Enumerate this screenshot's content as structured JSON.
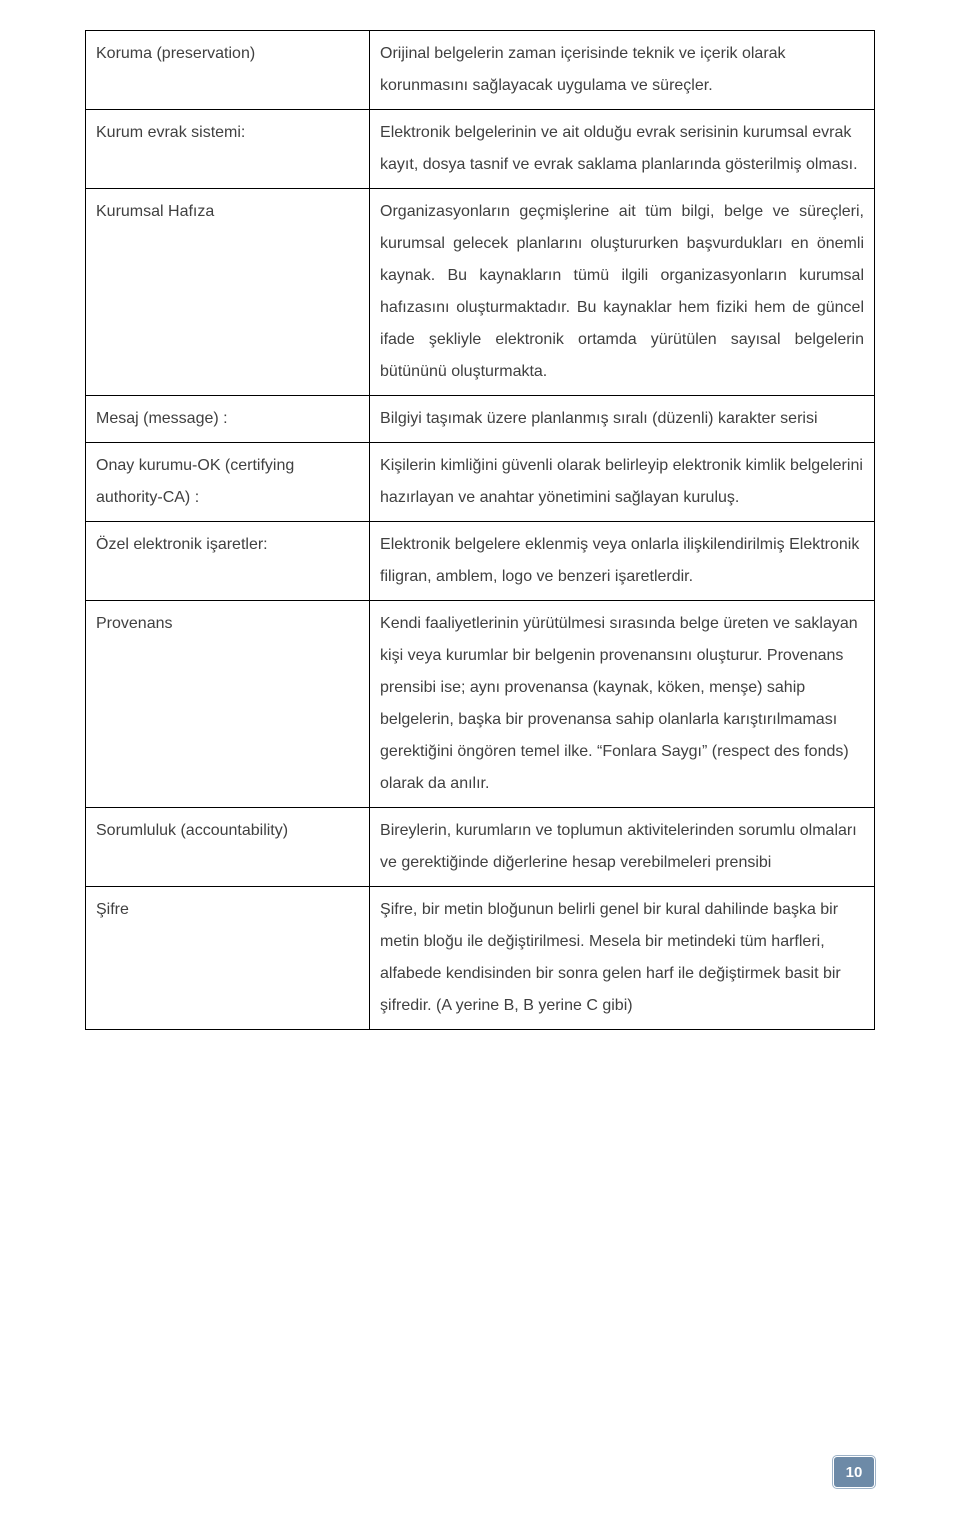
{
  "rows": [
    {
      "term": "Koruma (preservation)",
      "def": "Orijinal belgelerin zaman içerisinde teknik ve içerik olarak korunmasını sağlayacak uygulama ve süreçler.",
      "justify": false
    },
    {
      "term": "Kurum evrak sistemi:",
      "def": "Elektronik belgelerinin ve ait olduğu evrak serisinin kurumsal evrak kayıt, dosya tasnif ve evrak saklama planlarında gösterilmiş olması.",
      "justify": false
    },
    {
      "term": "Kurumsal Hafıza",
      "def": "Organizasyonların geçmişlerine ait tüm bilgi, belge ve süreçleri, kurumsal gelecek planlarını oluştururken başvurdukları en önemli kaynak.\nBu kaynakların tümü ilgili organizasyonların kurumsal hafızasını oluşturmaktadır. Bu kaynaklar hem fiziki hem de güncel ifade şekliyle elektronik ortamda yürütülen sayısal belgelerin bütününü oluşturmakta.",
      "justify": true
    },
    {
      "term": "Mesaj (message) :",
      "def": "Bilgiyi taşımak üzere planlanmış sıralı (düzenli) karakter serisi",
      "justify": false
    },
    {
      "term": "Onay kurumu-OK (certifying authority-CA) :",
      "def": "Kişilerin kimliğini güvenli olarak belirleyip elektronik kimlik belgelerini hazırlayan ve anahtar yönetimini sağlayan kuruluş.",
      "justify": false
    },
    {
      "term": "Özel elektronik işaretler:",
      "def": "Elektronik belgelere eklenmiş veya onlarla ilişkilendirilmiş Elektronik filigran, amblem, logo ve benzeri işaretlerdir.",
      "justify": false
    },
    {
      "term": "Provenans",
      "def": "Kendi faaliyetlerinin yürütülmesi sırasında belge üreten ve saklayan kişi veya kurumlar bir belgenin provenansını oluşturur. Provenans prensibi ise; aynı provenansa (kaynak, köken, menşe) sahip belgelerin, başka bir provenansa sahip olanlarla karıştırılmaması gerektiğini öngören temel ilke.\n“Fonlara Saygı” (respect des fonds) olarak da anılır.",
      "justify": false
    },
    {
      "term": "Sorumluluk (accountability)",
      "def": "Bireylerin, kurumların ve toplumun aktivitelerinden sorumlu olmaları ve gerektiğinde diğerlerine hesap verebilmeleri prensibi",
      "justify": false
    },
    {
      "term": "Şifre",
      "def": "Şifre, bir metin bloğunun belirli genel bir kural dahilinde başka bir metin bloğu ile değiştirilmesi.\nMesela bir metindeki tüm harfleri, alfabede kendisinden bir sonra gelen harf ile değiştirmek basit bir şifredir. (A yerine B, B yerine C gibi)",
      "justify": false
    }
  ],
  "page_number": "10"
}
